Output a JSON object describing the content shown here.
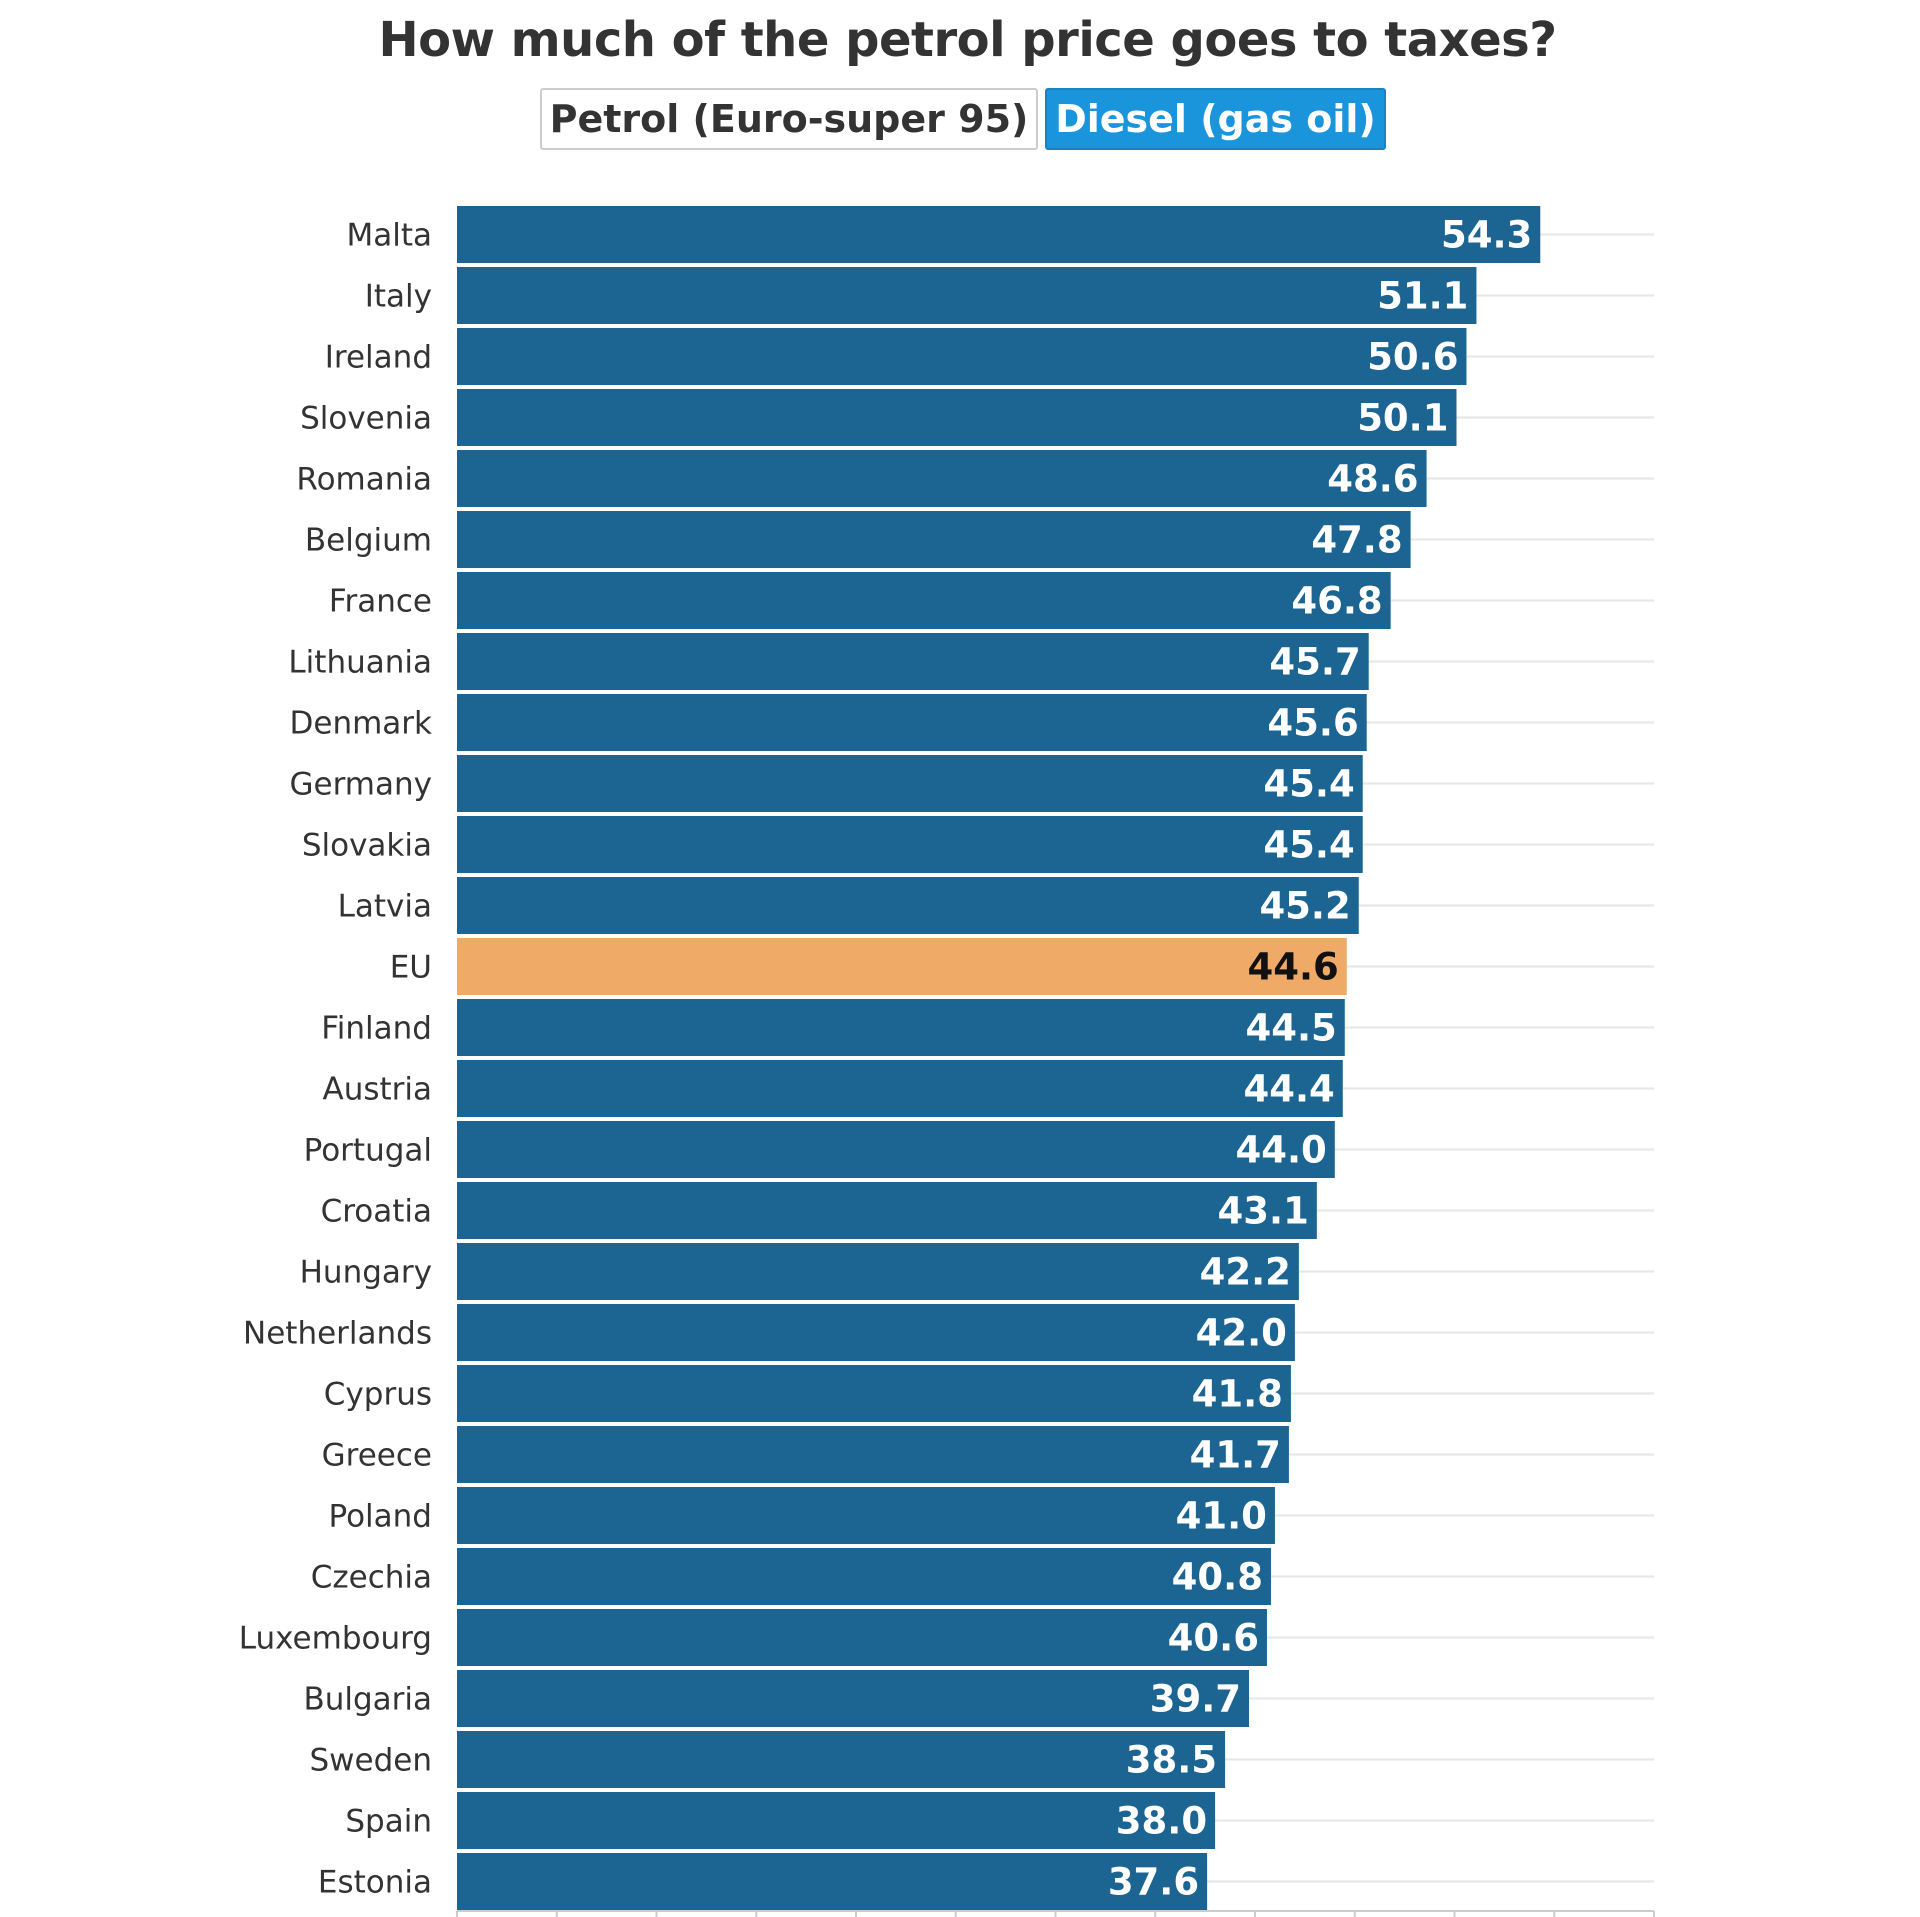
{
  "title": "How much of the petrol price goes to taxes?",
  "toggle": {
    "options": [
      "Petrol (Euro-super 95)",
      "Diesel (gas oil)"
    ],
    "selected": "Diesel (gas oil)"
  },
  "colors": {
    "bar": "#1c6592",
    "highlight": "#eeaa66",
    "toggle_active": "#1a95dc"
  },
  "chart_data": {
    "type": "bar",
    "orientation": "horizontal",
    "title": "How much of the petrol price goes to taxes?",
    "categories": [
      "Malta",
      "Italy",
      "Ireland",
      "Slovenia",
      "Romania",
      "Belgium",
      "France",
      "Lithuania",
      "Denmark",
      "Germany",
      "Slovakia",
      "Latvia",
      "EU",
      "Finland",
      "Austria",
      "Portugal",
      "Croatia",
      "Hungary",
      "Netherlands",
      "Cyprus",
      "Greece",
      "Poland",
      "Czechia",
      "Luxembourg",
      "Bulgaria",
      "Sweden",
      "Spain",
      "Estonia"
    ],
    "values": [
      54.3,
      51.1,
      50.6,
      50.1,
      48.6,
      47.8,
      46.8,
      45.7,
      45.6,
      45.4,
      45.4,
      45.2,
      44.6,
      44.5,
      44.4,
      44.0,
      43.1,
      42.2,
      42.0,
      41.8,
      41.7,
      41.0,
      40.8,
      40.6,
      39.7,
      38.5,
      38.0,
      37.6
    ],
    "highlight": "EU",
    "xlim": [
      0,
      60
    ],
    "grid": true,
    "data_labels": true
  }
}
